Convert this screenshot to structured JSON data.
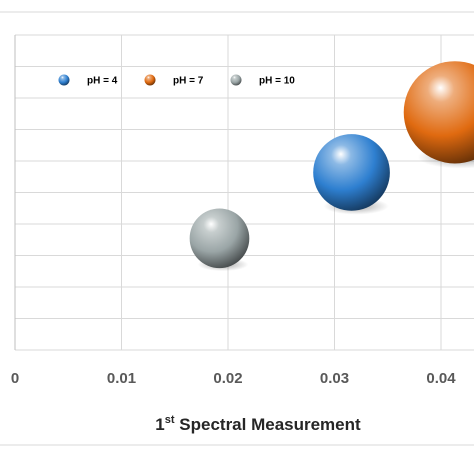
{
  "chart_data": {
    "type": "scatter",
    "title": "",
    "xlabel": {
      "prefix": "1",
      "superscript": "st",
      "rest": " Spectral Measurement"
    },
    "ylabel": "",
    "xlim": [
      0,
      0.045
    ],
    "ylim": [
      0,
      11
    ],
    "x_ticks": [
      "0",
      "0.01",
      "0.02",
      "0.03",
      "0.04"
    ],
    "x_tick_values": [
      0,
      0.01,
      0.02,
      0.03,
      0.04
    ],
    "grid": true,
    "legend_position": "top-left",
    "series": [
      {
        "name": "pH = 4",
        "color": "#2e7fd0",
        "x": 0.0316,
        "y": 6.2,
        "bubble_size": 0.0036
      },
      {
        "name": "pH = 7",
        "color": "#e06a10",
        "x": 0.0413,
        "y": 8.3,
        "bubble_size": 0.0048
      },
      {
        "name": "pH = 10",
        "color": "#9aa5a6",
        "x": 0.0192,
        "y": 3.9,
        "bubble_size": 0.0028
      }
    ]
  }
}
